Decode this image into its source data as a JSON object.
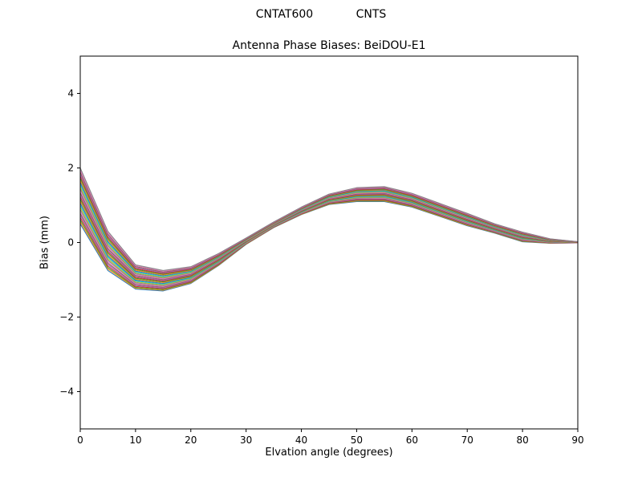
{
  "figure": {
    "suptitle": "CNTAT600            CNTS"
  },
  "chart_data": {
    "type": "line",
    "title": "Antenna Phase Biases: BeiDOU-E1",
    "xlabel": "Elvation angle (degrees)",
    "ylabel": "Bias (mm)",
    "xlim": [
      0,
      90
    ],
    "ylim": [
      -5,
      5
    ],
    "xticks": [
      0,
      10,
      20,
      30,
      40,
      50,
      60,
      70,
      80,
      90
    ],
    "xticklabels": [
      "0",
      "10",
      "20",
      "30",
      "40",
      "50",
      "60",
      "70",
      "80",
      "90"
    ],
    "yticks": [
      -4,
      -2,
      0,
      2,
      4
    ],
    "yticklabels": [
      "−4",
      "−2",
      "0",
      "2",
      "4"
    ],
    "grid": false,
    "legend": null,
    "x": [
      0,
      5,
      10,
      15,
      20,
      25,
      30,
      35,
      40,
      45,
      50,
      55,
      60,
      65,
      70,
      75,
      80,
      85,
      90
    ],
    "band_upper": [
      2.0,
      0.3,
      -0.6,
      -0.75,
      -0.65,
      -0.3,
      0.12,
      0.55,
      0.95,
      1.3,
      1.47,
      1.5,
      1.32,
      1.05,
      0.78,
      0.5,
      0.28,
      0.1,
      0.02
    ],
    "band_lower": [
      0.5,
      -0.75,
      -1.25,
      -1.3,
      -1.1,
      -0.62,
      -0.05,
      0.4,
      0.75,
      1.02,
      1.1,
      1.1,
      0.95,
      0.7,
      0.45,
      0.25,
      0.02,
      -0.02,
      -0.01
    ],
    "num_lines": 28,
    "palette": [
      "#1f77b4",
      "#ff7f0e",
      "#2ca02c",
      "#d62728",
      "#9467bd",
      "#8c564b",
      "#e377c2",
      "#7f7f7f",
      "#bcbd22",
      "#17becf"
    ]
  }
}
